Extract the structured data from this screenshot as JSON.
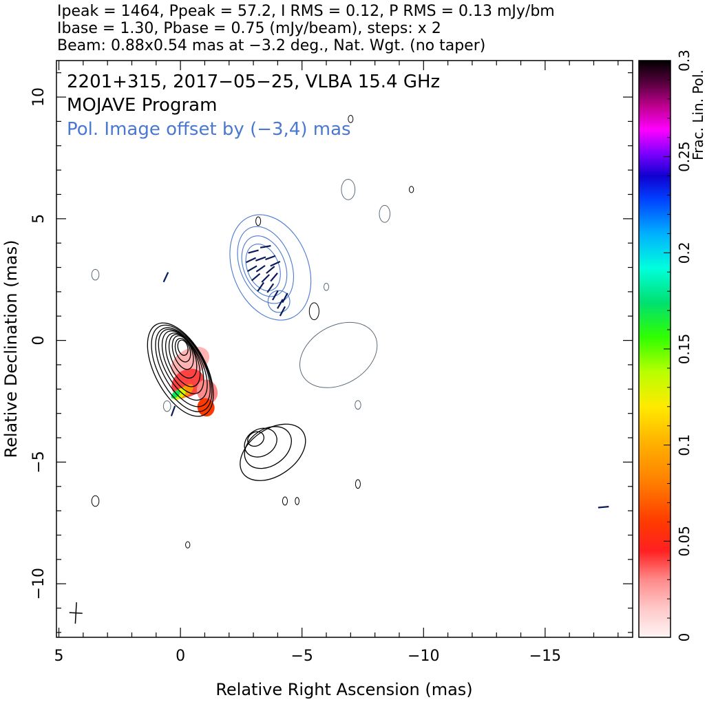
{
  "header": {
    "line1": "Ipeak = 1464, Ppeak = 57.2, I RMS = 0.12, P RMS = 0.13 mJy/bm",
    "line2": "Ibase = 1.30, Pbase = 0.75 (mJy/beam), steps: x 2",
    "line3": "Beam: 0.88x0.54 mas at −3.2 deg., Nat. Wgt. (no taper)"
  },
  "inset": {
    "line1": "2201+315, 2017−05−25, VLBA 15.4 GHz",
    "line2": "MOJAVE Program",
    "line3": "Pol. Image offset by (−3,4) mas"
  },
  "colors": {
    "total_intensity_contour": "#000000",
    "polarized_contour": "#4a78d0",
    "evpa_tick": "#0a1a5a",
    "faint_contour": "#5a6a7a"
  },
  "colorbar": {
    "label": "Frac. Lin. Pol.",
    "range": [
      0,
      0.3
    ],
    "ticks": [
      "0",
      "0.05",
      "0.1",
      "0.15",
      "0.2",
      "0.25",
      "0.3"
    ]
  },
  "chart_data": {
    "type": "contour",
    "xlabel": "Relative Right Ascension (mas)",
    "ylabel": "Relative Declination (mas)",
    "xlim": [
      5.1,
      -18.6
    ],
    "ylim": [
      -12.2,
      11.5
    ],
    "xticks": [
      5,
      0,
      -5,
      -10,
      -15
    ],
    "xtick_labels": [
      "5",
      "0",
      "−5",
      "−10",
      "−15"
    ],
    "yticks": [
      10,
      5,
      0,
      -5,
      -10
    ],
    "ytick_labels": [
      "10",
      "5",
      "0",
      "−5",
      "−10"
    ],
    "stats": {
      "Ipeak_mJy_per_beam": 1464,
      "Ppeak_mJy_per_beam": 57.2,
      "I_RMS": 0.12,
      "P_RMS": 0.13,
      "Ibase": 1.3,
      "Pbase": 0.75,
      "contour_step_factor": 2,
      "beam_major_mas": 0.88,
      "beam_minor_mas": 0.54,
      "beam_pa_deg": -3.2
    },
    "source": "2201+315",
    "date": "2017-05-25",
    "frequency_GHz": 15.4,
    "pol_offset_mas": [
      -3,
      4
    ],
    "core_contours": [
      {
        "x": 0.0,
        "y": -1.2,
        "rx": 1.05,
        "ry": 2.1,
        "rot": -28
      },
      {
        "x": -0.05,
        "y": -1.15,
        "rx": 0.95,
        "ry": 1.95,
        "rot": -28
      },
      {
        "x": -0.1,
        "y": -1.1,
        "rx": 0.85,
        "ry": 1.78,
        "rot": -28
      },
      {
        "x": -0.1,
        "y": -1.0,
        "rx": 0.75,
        "ry": 1.6,
        "rot": -28
      },
      {
        "x": -0.1,
        "y": -0.9,
        "rx": 0.66,
        "ry": 1.4,
        "rot": -26
      },
      {
        "x": -0.1,
        "y": -0.8,
        "rx": 0.57,
        "ry": 1.18,
        "rot": -24
      },
      {
        "x": -0.1,
        "y": -0.65,
        "rx": 0.48,
        "ry": 0.95,
        "rot": -22
      },
      {
        "x": -0.1,
        "y": -0.5,
        "rx": 0.38,
        "ry": 0.72,
        "rot": -20
      },
      {
        "x": -0.1,
        "y": -0.4,
        "rx": 0.29,
        "ry": 0.5,
        "rot": -18
      },
      {
        "x": -0.1,
        "y": -0.3,
        "rx": 0.2,
        "ry": 0.32,
        "rot": -15
      }
    ],
    "jet_contours": [
      {
        "x": -3.8,
        "y": -4.6,
        "rx": 1.5,
        "ry": 0.95,
        "rot": -35
      },
      {
        "x": -3.6,
        "y": -4.4,
        "rx": 1.05,
        "ry": 0.75,
        "rot": -35
      },
      {
        "x": -3.3,
        "y": -4.2,
        "rx": 0.7,
        "ry": 0.55,
        "rot": -30
      },
      {
        "x": -3.1,
        "y": -4.05,
        "rx": 0.35,
        "ry": 0.28,
        "rot": -30
      }
    ],
    "pol_contours": [
      {
        "x": -3.7,
        "y": 3.0,
        "rx": 1.55,
        "ry": 2.25,
        "rot": -22
      },
      {
        "x": -3.5,
        "y": 3.1,
        "rx": 1.05,
        "ry": 1.65,
        "rot": -22
      },
      {
        "x": -3.45,
        "y": 3.05,
        "rx": 0.85,
        "ry": 1.3,
        "rot": -22
      },
      {
        "x": -3.4,
        "y": 3.0,
        "rx": 0.65,
        "ry": 1.0,
        "rot": -22
      },
      {
        "x": -4.05,
        "y": 1.6,
        "rx": 0.45,
        "ry": 0.45,
        "rot": 0
      }
    ],
    "faint_contours": [
      {
        "x": -6.5,
        "y": -0.6,
        "rx": 1.7,
        "ry": 1.2,
        "rot": -30
      },
      {
        "x": -6.9,
        "y": 6.2,
        "rx": 0.28,
        "ry": 0.42,
        "rot": 0
      },
      {
        "x": -8.4,
        "y": 5.2,
        "rx": 0.22,
        "ry": 0.35,
        "rot": 0
      },
      {
        "x": 3.5,
        "y": 2.7,
        "rx": 0.15,
        "ry": 0.22,
        "rot": 0
      },
      {
        "x": -6.0,
        "y": 2.2,
        "rx": 0.1,
        "ry": 0.15,
        "rot": 0
      },
      {
        "x": 0.55,
        "y": -2.7,
        "rx": 0.15,
        "ry": 0.22,
        "rot": 0
      },
      {
        "x": -7.3,
        "y": -2.65,
        "rx": 0.12,
        "ry": 0.18,
        "rot": 0
      }
    ],
    "small_black_contours": [
      {
        "x": -3.2,
        "y": 4.9,
        "rx": 0.1,
        "ry": 0.18,
        "rot": 0
      },
      {
        "x": -5.5,
        "y": 1.2,
        "rx": 0.2,
        "ry": 0.35,
        "rot": 0
      },
      {
        "x": 3.5,
        "y": -6.6,
        "rx": 0.15,
        "ry": 0.22,
        "rot": 0
      },
      {
        "x": -4.3,
        "y": -6.6,
        "rx": 0.1,
        "ry": 0.17,
        "rot": 0
      },
      {
        "x": -4.8,
        "y": -6.6,
        "rx": 0.08,
        "ry": 0.15,
        "rot": 0
      },
      {
        "x": -7.3,
        "y": -5.9,
        "rx": 0.1,
        "ry": 0.18,
        "rot": 0
      },
      {
        "x": -0.3,
        "y": -8.4,
        "rx": 0.09,
        "ry": 0.13,
        "rot": 0
      },
      {
        "x": -7.0,
        "y": 9.1,
        "rx": 0.1,
        "ry": 0.15,
        "rot": 0
      },
      {
        "x": -9.5,
        "y": 6.2,
        "rx": 0.09,
        "ry": 0.13,
        "rot": 0
      }
    ],
    "pol_fraction_regions": [
      {
        "x": -0.4,
        "y": -0.9,
        "rx": 0.85,
        "ry": 0.55,
        "rot": -30,
        "frac": 0.02
      },
      {
        "x": -0.3,
        "y": -1.75,
        "rx": 0.7,
        "ry": 0.55,
        "rot": -30,
        "frac": 0.04
      },
      {
        "x": -0.2,
        "y": -2.1,
        "rx": 0.4,
        "ry": 0.2,
        "rot": -40,
        "frac": 0.09
      },
      {
        "x": 0.05,
        "y": -2.2,
        "rx": 0.32,
        "ry": 0.18,
        "rot": -40,
        "frac": 0.13
      },
      {
        "x": 0.2,
        "y": -2.22,
        "rx": 0.22,
        "ry": 0.12,
        "rot": -40,
        "frac": 0.17
      },
      {
        "x": -1.1,
        "y": -2.1,
        "rx": 0.42,
        "ry": 0.5,
        "rot": -20,
        "frac": 0.03
      },
      {
        "x": -1.05,
        "y": -2.75,
        "rx": 0.35,
        "ry": 0.38,
        "rot": -20,
        "frac": 0.06
      }
    ],
    "evpa_ticks": [
      {
        "x": -3.0,
        "y": 3.65,
        "angle": 15
      },
      {
        "x": -3.5,
        "y": 3.85,
        "angle": 10
      },
      {
        "x": -2.9,
        "y": 3.3,
        "angle": 25
      },
      {
        "x": -3.3,
        "y": 3.35,
        "angle": 20
      },
      {
        "x": -3.7,
        "y": 3.4,
        "angle": 20
      },
      {
        "x": -3.9,
        "y": 3.15,
        "angle": 25
      },
      {
        "x": -2.95,
        "y": 2.95,
        "angle": 30
      },
      {
        "x": -3.3,
        "y": 2.95,
        "angle": 35
      },
      {
        "x": -3.7,
        "y": 2.9,
        "angle": 40
      },
      {
        "x": -3.1,
        "y": 2.6,
        "angle": 40
      },
      {
        "x": -3.5,
        "y": 2.55,
        "angle": 45
      },
      {
        "x": -3.85,
        "y": 2.6,
        "angle": 50
      },
      {
        "x": -3.3,
        "y": 2.2,
        "angle": 55
      },
      {
        "x": -3.7,
        "y": 2.15,
        "angle": 55
      },
      {
        "x": -3.9,
        "y": 1.85,
        "angle": 60
      },
      {
        "x": -4.1,
        "y": 1.5,
        "angle": 60
      },
      {
        "x": -4.3,
        "y": 1.75,
        "angle": 62
      },
      {
        "x": -4.2,
        "y": 1.2,
        "angle": 62
      },
      {
        "x": 0.3,
        "y": -2.9,
        "angle": 70
      },
      {
        "x": 0.6,
        "y": 2.6,
        "angle": 65
      },
      {
        "x": -17.4,
        "y": -6.85,
        "angle": 5
      }
    ],
    "beam": {
      "x": 4.3,
      "y": -11.2,
      "major": 0.88,
      "minor": 0.54,
      "pa": -3.2
    }
  }
}
